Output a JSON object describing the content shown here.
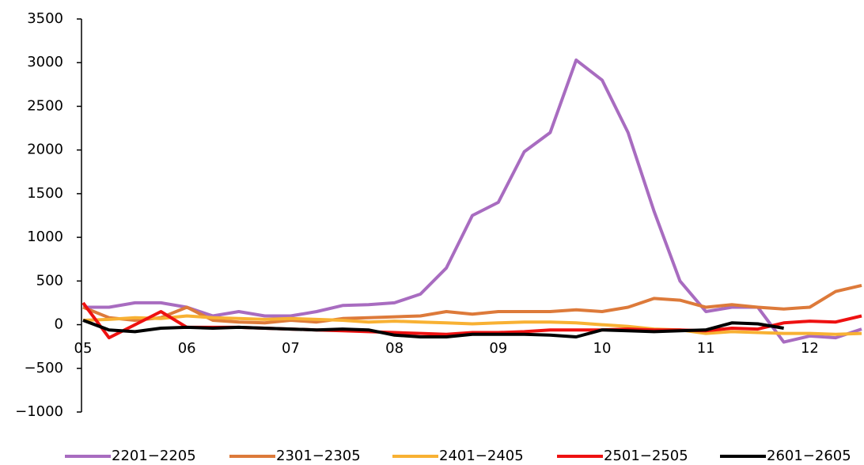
{
  "chart_data": {
    "type": "line",
    "categories": [
      "05",
      null,
      null,
      null,
      "06",
      null,
      null,
      null,
      "07",
      null,
      null,
      null,
      "08",
      null,
      null,
      null,
      "09",
      null,
      null,
      null,
      "10",
      null,
      null,
      null,
      "11",
      null,
      null,
      null,
      "12",
      null,
      null
    ],
    "series": [
      {
        "name": "2201−2205",
        "color": "#a86cc0",
        "values": [
          200,
          200,
          250,
          250,
          200,
          100,
          150,
          100,
          100,
          150,
          220,
          230,
          250,
          350,
          650,
          1250,
          1400,
          1980,
          2200,
          3030,
          2800,
          2200,
          1300,
          500,
          150,
          200,
          200,
          -200,
          -130,
          -150,
          -50
        ]
      },
      {
        "name": "2301−2305",
        "color": "#dd7a3a",
        "values": [
          200,
          80,
          50,
          80,
          200,
          50,
          30,
          20,
          50,
          30,
          70,
          80,
          90,
          100,
          150,
          120,
          150,
          150,
          150,
          170,
          150,
          200,
          300,
          280,
          200,
          230,
          200,
          180,
          200,
          380,
          450
        ]
      },
      {
        "name": "2401−2405",
        "color": "#f8b133",
        "values": [
          50,
          60,
          80,
          70,
          100,
          80,
          70,
          60,
          70,
          60,
          50,
          30,
          40,
          30,
          20,
          10,
          20,
          30,
          30,
          20,
          0,
          -20,
          -50,
          -60,
          -100,
          -80,
          -90,
          -100,
          -100,
          -110,
          -100
        ]
      },
      {
        "name": "2501−2505",
        "color": "#ee1111",
        "values": [
          250,
          -150,
          0,
          150,
          -30,
          -30,
          -30,
          -40,
          -50,
          -60,
          -70,
          -80,
          -90,
          -100,
          -110,
          -90,
          -90,
          -80,
          -60,
          -60,
          -60,
          -50,
          -60,
          -60,
          -70,
          -40,
          -50,
          20,
          40,
          30,
          100
        ]
      },
      {
        "name": "2601−2605",
        "color": "#000000",
        "values": [
          50,
          -60,
          -80,
          -40,
          -30,
          -40,
          -30,
          -40,
          -50,
          -60,
          -50,
          -60,
          -120,
          -140,
          -140,
          -110,
          -110,
          -110,
          -120,
          -140,
          -60,
          -70,
          -80,
          -70,
          -60,
          20,
          10,
          -40,
          null,
          null,
          null
        ]
      }
    ],
    "ylim": [
      -1000,
      3500
    ],
    "yticks": [
      {
        "value": -1000,
        "label": "−1000"
      },
      {
        "value": -500,
        "label": "−500"
      },
      0,
      500,
      1000,
      1500,
      2000,
      2500,
      3000,
      3500
    ]
  }
}
